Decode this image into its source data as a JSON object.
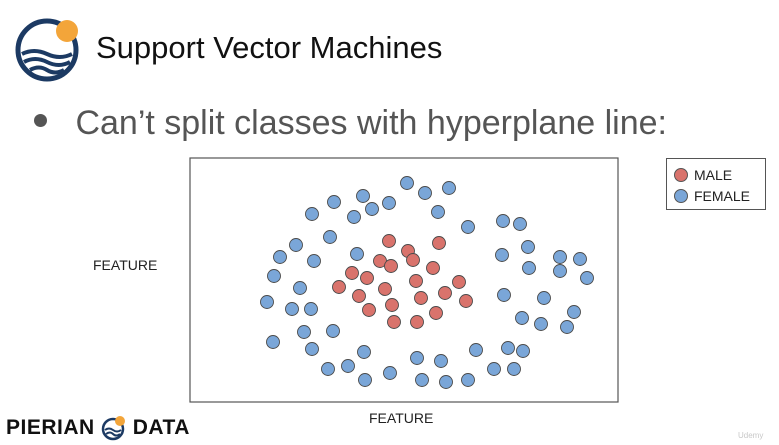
{
  "slide": {
    "title": "Support Vector Machines",
    "bullet": "Can’t split classes with hyperplane line:"
  },
  "chart_data": {
    "type": "scatter",
    "xlabel": "FEATURE",
    "ylabel": "FEATURE",
    "legend_position": "top-right outside plot",
    "series": [
      {
        "name": "MALE",
        "color": "#d9736c",
        "points": [
          [
            389,
            241
          ],
          [
            439,
            243
          ],
          [
            408,
            251
          ],
          [
            380,
            261
          ],
          [
            352,
            273
          ],
          [
            367,
            278
          ],
          [
            391,
            266
          ],
          [
            413,
            260
          ],
          [
            433,
            268
          ],
          [
            339,
            287
          ],
          [
            359,
            296
          ],
          [
            385,
            289
          ],
          [
            416,
            281
          ],
          [
            459,
            282
          ],
          [
            445,
            293
          ],
          [
            369,
            310
          ],
          [
            392,
            305
          ],
          [
            421,
            298
          ],
          [
            466,
            301
          ],
          [
            394,
            322
          ],
          [
            417,
            322
          ],
          [
            436,
            313
          ]
        ]
      },
      {
        "name": "FEMALE",
        "color": "#7aa6d8",
        "points": [
          [
            407,
            183
          ],
          [
            363,
            196
          ],
          [
            425,
            193
          ],
          [
            449,
            188
          ],
          [
            334,
            202
          ],
          [
            372,
            209
          ],
          [
            389,
            203
          ],
          [
            312,
            214
          ],
          [
            354,
            217
          ],
          [
            438,
            212
          ],
          [
            503,
            221
          ],
          [
            468,
            227
          ],
          [
            520,
            224
          ],
          [
            330,
            237
          ],
          [
            296,
            245
          ],
          [
            357,
            254
          ],
          [
            502,
            255
          ],
          [
            528,
            247
          ],
          [
            560,
            257
          ],
          [
            580,
            259
          ],
          [
            280,
            257
          ],
          [
            314,
            261
          ],
          [
            529,
            268
          ],
          [
            274,
            276
          ],
          [
            560,
            271
          ],
          [
            587,
            278
          ],
          [
            300,
            288
          ],
          [
            292,
            309
          ],
          [
            311,
            309
          ],
          [
            267,
            302
          ],
          [
            504,
            295
          ],
          [
            544,
            298
          ],
          [
            574,
            312
          ],
          [
            333,
            331
          ],
          [
            304,
            332
          ],
          [
            522,
            318
          ],
          [
            541,
            324
          ],
          [
            567,
            327
          ],
          [
            273,
            342
          ],
          [
            312,
            349
          ],
          [
            364,
            352
          ],
          [
            417,
            358
          ],
          [
            441,
            361
          ],
          [
            476,
            350
          ],
          [
            508,
            348
          ],
          [
            523,
            351
          ],
          [
            328,
            369
          ],
          [
            348,
            366
          ],
          [
            365,
            380
          ],
          [
            390,
            373
          ],
          [
            422,
            380
          ],
          [
            446,
            382
          ],
          [
            468,
            380
          ],
          [
            494,
            369
          ],
          [
            514,
            369
          ]
        ]
      }
    ]
  }
}
